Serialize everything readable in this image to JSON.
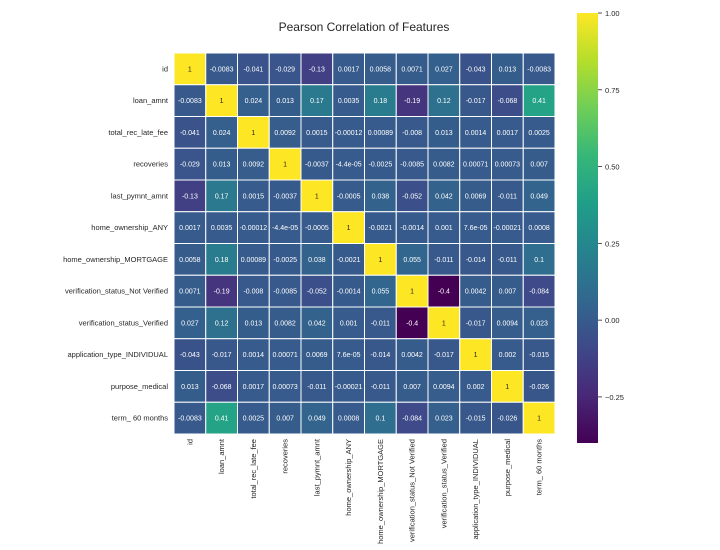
{
  "chart_data": {
    "type": "heatmap",
    "title": "Pearson Correlation of Features",
    "colormap": "viridis",
    "vmin": -0.4,
    "vmax": 1.0,
    "labels": [
      "id",
      "loan_amnt",
      "total_rec_late_fee",
      "recoveries",
      "last_pymnt_amnt",
      "home_ownership_ANY",
      "home_ownership_MORTGAGE",
      "verification_status_Not Verified",
      "verification_status_Verified",
      "application_type_INDIVIDUAL",
      "purpose_medical",
      "term_ 60 months"
    ],
    "values": [
      [
        1,
        -0.0083,
        -0.041,
        -0.029,
        -0.13,
        0.0017,
        0.0058,
        0.0071,
        0.027,
        -0.043,
        0.013,
        -0.0083
      ],
      [
        -0.0083,
        1,
        0.024,
        0.013,
        0.17,
        0.0035,
        0.18,
        -0.19,
        0.12,
        -0.017,
        -0.068,
        0.41
      ],
      [
        -0.041,
        0.024,
        1,
        0.0092,
        0.0015,
        -0.00012,
        0.00089,
        -0.008,
        0.013,
        0.0014,
        0.0017,
        0.0025
      ],
      [
        -0.029,
        0.013,
        0.0092,
        1,
        -0.0037,
        -4.4e-05,
        -0.0025,
        -0.0085,
        0.0082,
        0.00071,
        0.00073,
        0.007
      ],
      [
        -0.13,
        0.17,
        0.0015,
        -0.0037,
        1,
        -0.0005,
        0.038,
        -0.052,
        0.042,
        0.0069,
        -0.011,
        0.049
      ],
      [
        0.0017,
        0.0035,
        -0.00012,
        -4.4e-05,
        -0.0005,
        1,
        -0.0021,
        -0.0014,
        0.001,
        7.6e-05,
        -0.00021,
        0.0008
      ],
      [
        0.0058,
        0.18,
        0.00089,
        -0.0025,
        0.038,
        -0.0021,
        1,
        0.055,
        -0.011,
        -0.014,
        -0.011,
        0.1
      ],
      [
        0.0071,
        -0.19,
        -0.008,
        -0.0085,
        -0.052,
        -0.0014,
        0.055,
        1,
        -0.4,
        0.0042,
        0.007,
        -0.084
      ],
      [
        0.027,
        0.12,
        0.013,
        0.0082,
        0.042,
        0.001,
        -0.011,
        -0.4,
        1,
        -0.017,
        0.0094,
        0.023
      ],
      [
        -0.043,
        -0.017,
        0.0014,
        0.00071,
        0.0069,
        7.6e-05,
        -0.014,
        0.0042,
        -0.017,
        1,
        0.002,
        -0.015
      ],
      [
        0.013,
        -0.068,
        0.0017,
        0.00073,
        -0.011,
        -0.00021,
        -0.011,
        0.007,
        0.0094,
        0.002,
        1,
        -0.026
      ],
      [
        -0.0083,
        0.41,
        0.0025,
        0.007,
        0.049,
        0.0008,
        0.1,
        -0.084,
        0.023,
        -0.015,
        -0.026,
        1
      ]
    ],
    "annotations": [
      [
        "1",
        "-0.0083",
        "-0.041",
        "-0.029",
        "-0.13",
        "0.0017",
        "0.0058",
        "0.0071",
        "0.027",
        "-0.043",
        "0.013",
        "-0.0083"
      ],
      [
        "-0.0083",
        "1",
        "0.024",
        "0.013",
        "0.17",
        "0.0035",
        "0.18",
        "-0.19",
        "0.12",
        "-0.017",
        "-0.068",
        "0.41"
      ],
      [
        "-0.041",
        "0.024",
        "1",
        "0.0092",
        "0.0015",
        "-0.00012",
        "0.00089",
        "-0.008",
        "0.013",
        "0.0014",
        "0.0017",
        "0.0025"
      ],
      [
        "-0.029",
        "0.013",
        "0.0092",
        "1",
        "-0.0037",
        "-4.4e-05",
        "-0.0025",
        "-0.0085",
        "0.0082",
        "0.00071",
        "0.00073",
        "0.007"
      ],
      [
        "-0.13",
        "0.17",
        "0.0015",
        "-0.0037",
        "1",
        "-0.0005",
        "0.038",
        "-0.052",
        "0.042",
        "0.0069",
        "-0.011",
        "0.049"
      ],
      [
        "0.0017",
        "0.0035",
        "-0.00012",
        "-4.4e-05",
        "-0.0005",
        "1",
        "-0.0021",
        "-0.0014",
        "0.001",
        "7.6e-05",
        "-0.00021",
        "0.0008"
      ],
      [
        "0.0058",
        "0.18",
        "0.00089",
        "-0.0025",
        "0.038",
        "-0.0021",
        "1",
        "0.055",
        "-0.011",
        "-0.014",
        "-0.011",
        "0.1"
      ],
      [
        "0.0071",
        "-0.19",
        "-0.008",
        "-0.0085",
        "-0.052",
        "-0.0014",
        "0.055",
        "1",
        "-0.4",
        "0.0042",
        "0.007",
        "-0.084"
      ],
      [
        "0.027",
        "0.12",
        "0.013",
        "0.0082",
        "0.042",
        "0.001",
        "-0.011",
        "-0.4",
        "1",
        "-0.017",
        "0.0094",
        "0.023"
      ],
      [
        "-0.043",
        "-0.017",
        "0.0014",
        "0.00071",
        "0.0069",
        "7.6e-05",
        "-0.014",
        "0.0042",
        "-0.017",
        "1",
        "0.002",
        "-0.015"
      ],
      [
        "0.013",
        "-0.068",
        "0.0017",
        "0.00073",
        "-0.011",
        "-0.00021",
        "-0.011",
        "0.007",
        "0.0094",
        "0.002",
        "1",
        "-0.026"
      ],
      [
        "-0.0083",
        "0.41",
        "0.0025",
        "0.007",
        "0.049",
        "0.0008",
        "0.1",
        "-0.084",
        "0.023",
        "-0.015",
        "-0.026",
        "1"
      ]
    ],
    "colorbar": {
      "ticks": [
        1.0,
        0.75,
        0.5,
        0.25,
        0.0,
        -0.25
      ],
      "tick_labels": [
        "1.00",
        "0.75",
        "0.50",
        "0.25",
        "0.00",
        "−0.25"
      ]
    }
  },
  "colors": {
    "viridis": [
      "#440154",
      "#482878",
      "#3e4989",
      "#31688e",
      "#26828e",
      "#1f9e89",
      "#35b779",
      "#6ece58",
      "#b5de2b",
      "#fde725"
    ],
    "cell_border": "#ffffff",
    "text_dark": "#262626",
    "text_light": "#ffffff"
  }
}
